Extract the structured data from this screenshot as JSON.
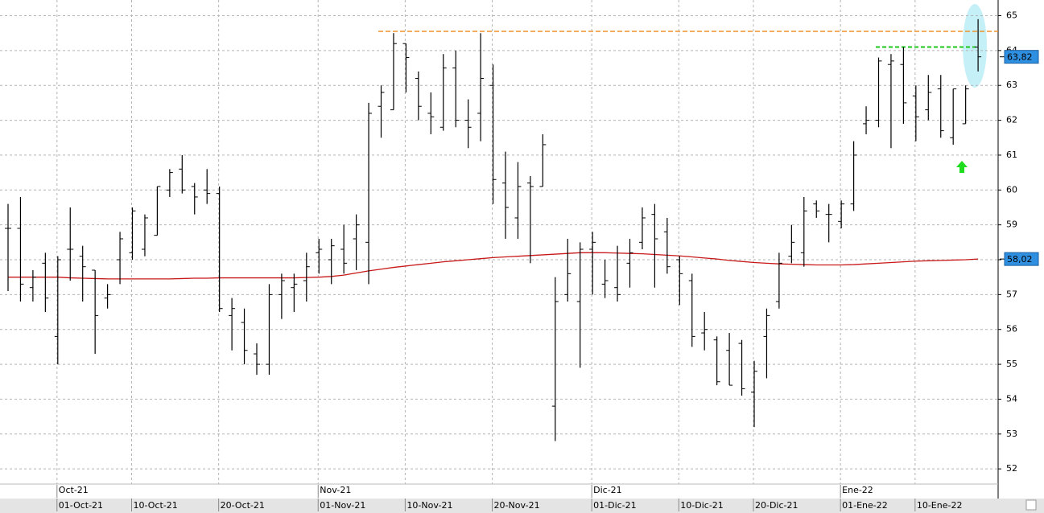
{
  "chart_data": {
    "type": "ohlc",
    "categories": [
      null,
      null,
      null,
      null,
      "01-Oct-21",
      null,
      null,
      null,
      null,
      null,
      "10-Oct-21",
      null,
      null,
      null,
      null,
      null,
      null,
      "20-Oct-21",
      null,
      null,
      null,
      null,
      null,
      null,
      null,
      "01-Nov-21",
      null,
      null,
      null,
      null,
      null,
      null,
      "10-Nov-21",
      null,
      null,
      null,
      null,
      null,
      null,
      "20-Nov-21",
      null,
      null,
      null,
      null,
      null,
      null,
      null,
      "01-Dic-21",
      null,
      null,
      null,
      null,
      null,
      null,
      "10-Dic-21",
      null,
      null,
      null,
      null,
      null,
      "20-Dic-21",
      null,
      null,
      null,
      null,
      null,
      null,
      "01-Ene-22",
      null,
      null,
      null,
      null,
      null,
      "10-Ene-22",
      null,
      null,
      null,
      null,
      null
    ],
    "periods": [
      null,
      null,
      null,
      null,
      "Oct-21",
      null,
      null,
      null,
      null,
      null,
      null,
      null,
      null,
      null,
      null,
      null,
      null,
      null,
      null,
      null,
      null,
      null,
      null,
      null,
      null,
      "Nov-21",
      null,
      null,
      null,
      null,
      null,
      null,
      null,
      null,
      null,
      null,
      null,
      null,
      null,
      null,
      null,
      null,
      null,
      null,
      null,
      null,
      null,
      "Dic-21",
      null,
      null,
      null,
      null,
      null,
      null,
      null,
      null,
      null,
      null,
      null,
      null,
      null,
      null,
      null,
      null,
      null,
      null,
      null,
      "Ene-22",
      null,
      null,
      null,
      null,
      null,
      null,
      null,
      null,
      null,
      null,
      null
    ],
    "open": [
      58.9,
      58.9,
      57.2,
      57.9,
      55.8,
      58.3,
      58.1,
      57.7,
      56.9,
      58.0,
      58.2,
      58.3,
      58.7,
      60.0,
      60.6,
      60.1,
      60.0,
      59.9,
      56.4,
      56.2,
      55.3,
      55.0,
      57.0,
      57.2,
      57.4,
      58.2,
      58.0,
      58.3,
      58.6,
      58.5,
      62.4,
      62.3,
      64.2,
      63.2,
      62.2,
      61.8,
      63.5,
      62.0,
      62.2,
      63.0,
      60.2,
      59.2,
      60.2,
      60.1,
      53.8,
      57.0,
      56.8,
      58.3,
      57.3,
      57.2,
      57.9,
      58.5,
      59.3,
      58.8,
      58.0,
      57.4,
      55.9,
      55.7,
      55.4,
      55.6,
      54.2,
      55.8,
      56.8,
      58.1,
      58.2,
      59.6,
      59.3,
      59.1,
      59.6,
      61.9,
      62.0,
      63.6,
      63.6,
      62.7,
      62.3,
      62.9,
      61.5,
      61.9,
      64.1
    ],
    "high": [
      59.6,
      59.8,
      57.7,
      58.2,
      58.1,
      59.5,
      58.4,
      57.7,
      57.3,
      58.8,
      59.5,
      59.3,
      60.1,
      60.6,
      61.0,
      60.2,
      60.6,
      60.1,
      56.9,
      56.6,
      55.6,
      57.3,
      57.6,
      57.6,
      58.2,
      58.6,
      58.6,
      59.0,
      59.3,
      62.5,
      63.0,
      64.5,
      64.2,
      63.4,
      62.8,
      63.9,
      64.0,
      62.6,
      64.5,
      63.6,
      61.1,
      60.8,
      60.4,
      61.6,
      57.5,
      58.6,
      58.5,
      58.8,
      58.0,
      58.4,
      58.6,
      59.5,
      59.6,
      59.2,
      58.1,
      57.6,
      56.5,
      55.8,
      55.9,
      55.7,
      55.1,
      56.6,
      58.2,
      59.0,
      59.8,
      59.7,
      59.6,
      59.7,
      61.4,
      62.4,
      63.8,
      63.9,
      64.1,
      63.0,
      63.3,
      63.3,
      62.9,
      63.0,
      64.9
    ],
    "low": [
      57.1,
      56.8,
      56.8,
      56.5,
      55.0,
      57.4,
      56.8,
      55.3,
      56.6,
      57.3,
      58.0,
      58.1,
      58.7,
      59.8,
      59.9,
      59.3,
      59.6,
      56.5,
      55.4,
      55.0,
      54.7,
      54.7,
      56.3,
      56.5,
      56.8,
      57.6,
      57.3,
      57.6,
      57.7,
      57.3,
      61.5,
      62.3,
      62.8,
      62.0,
      61.6,
      61.7,
      61.8,
      61.2,
      61.4,
      59.6,
      58.6,
      58.6,
      57.9,
      60.1,
      52.8,
      56.8,
      54.9,
      57.0,
      56.9,
      56.8,
      57.2,
      58.3,
      57.2,
      57.6,
      56.7,
      55.5,
      55.4,
      54.4,
      54.4,
      54.1,
      53.2,
      54.6,
      56.6,
      57.9,
      57.8,
      59.2,
      58.5,
      58.9,
      59.4,
      61.6,
      61.8,
      61.2,
      61.9,
      61.4,
      62.0,
      61.5,
      61.3,
      61.9,
      63.4
    ],
    "close": [
      58.9,
      57.3,
      57.5,
      56.9,
      58.0,
      58.3,
      57.8,
      56.4,
      57.0,
      58.6,
      59.4,
      59.2,
      60.1,
      60.5,
      60.0,
      59.8,
      59.9,
      56.6,
      56.6,
      55.4,
      55.0,
      57.0,
      57.4,
      57.3,
      57.8,
      58.3,
      58.4,
      57.9,
      59.0,
      62.2,
      62.8,
      64.2,
      63.8,
      62.4,
      62.1,
      63.5,
      62.0,
      61.8,
      63.2,
      60.3,
      59.5,
      60.1,
      60.1,
      61.3,
      56.8,
      57.6,
      58.3,
      58.5,
      57.4,
      57.0,
      58.2,
      59.2,
      58.6,
      57.8,
      57.6,
      55.8,
      56.0,
      54.5,
      54.4,
      54.3,
      54.8,
      56.4,
      57.9,
      58.5,
      59.4,
      59.4,
      59.3,
      59.6,
      61.0,
      62.0,
      63.7,
      63.7,
      62.5,
      62.1,
      62.8,
      61.7,
      62.9,
      62.9,
      63.82
    ],
    "bar_color": "#000000",
    "ma": {
      "color": "#c81818",
      "values": [
        57.5,
        57.5,
        57.5,
        57.5,
        57.5,
        57.48,
        57.47,
        57.46,
        57.45,
        57.45,
        57.45,
        57.45,
        57.45,
        57.45,
        57.46,
        57.47,
        57.47,
        57.48,
        57.48,
        57.48,
        57.48,
        57.48,
        57.48,
        57.48,
        57.49,
        57.5,
        57.52,
        57.56,
        57.62,
        57.68,
        57.73,
        57.78,
        57.82,
        57.86,
        57.9,
        57.94,
        57.97,
        58.0,
        58.03,
        58.06,
        58.08,
        58.1,
        58.12,
        58.14,
        58.16,
        58.18,
        58.2,
        58.2,
        58.2,
        58.19,
        58.18,
        58.17,
        58.15,
        58.13,
        58.11,
        58.08,
        58.05,
        58.02,
        57.98,
        57.95,
        57.92,
        57.9,
        57.88,
        57.87,
        57.86,
        57.85,
        57.85,
        57.85,
        57.86,
        57.88,
        57.9,
        57.92,
        57.94,
        57.96,
        57.97,
        57.98,
        57.99,
        58.0,
        58.02
      ]
    },
    "levels": [
      {
        "value": 64.55,
        "color": "#f0922a"
      },
      {
        "value": 64.1,
        "color": "#1ec81e"
      }
    ],
    "price_tags": [
      {
        "value": 63.82,
        "label": "63,82",
        "color": "#2f8fe0"
      },
      {
        "value": 58.02,
        "label": "58,02",
        "color": "#2f8fe0"
      }
    ],
    "ylim": [
      51.15,
      65.45
    ],
    "yticks": [
      52,
      53,
      54,
      55,
      56,
      57,
      58,
      59,
      60,
      61,
      62,
      63,
      64,
      65
    ],
    "grid": true
  }
}
